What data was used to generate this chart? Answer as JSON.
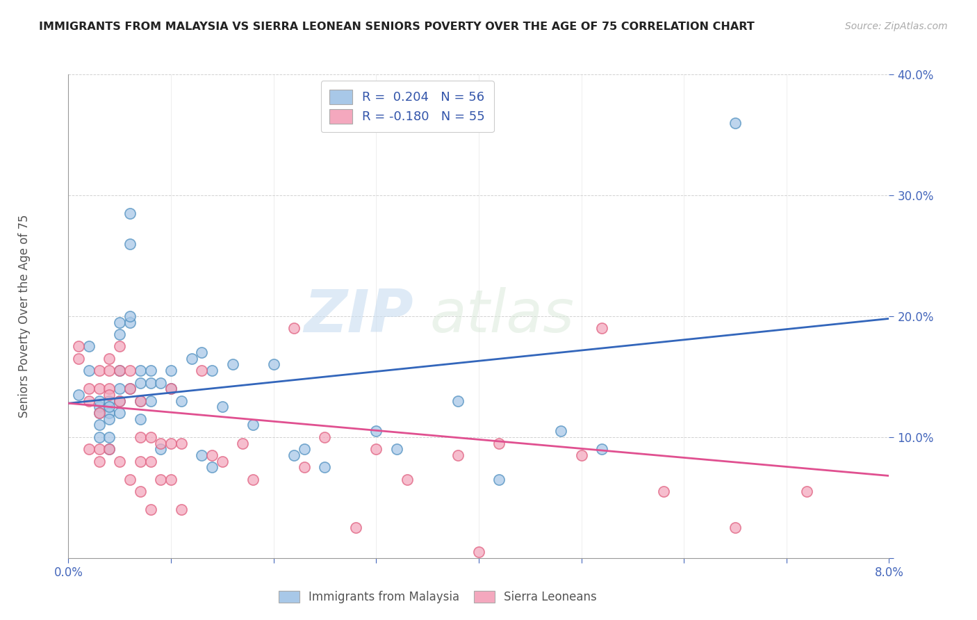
{
  "title": "IMMIGRANTS FROM MALAYSIA VS SIERRA LEONEAN SENIORS POVERTY OVER THE AGE OF 75 CORRELATION CHART",
  "source": "Source: ZipAtlas.com",
  "ylabel": "Seniors Poverty Over the Age of 75",
  "xlim": [
    0.0,
    0.08
  ],
  "ylim": [
    0.0,
    0.4
  ],
  "xticks": [
    0.0,
    0.01,
    0.02,
    0.03,
    0.04,
    0.05,
    0.06,
    0.07,
    0.08
  ],
  "yticks": [
    0.0,
    0.1,
    0.2,
    0.3,
    0.4
  ],
  "legend1_label": "R =  0.204   N = 56",
  "legend2_label": "R = -0.180   N = 55",
  "bottom_legend1": "Immigrants from Malaysia",
  "bottom_legend2": "Sierra Leoneans",
  "blue_color": "#a8c8e8",
  "pink_color": "#f4a8be",
  "blue_edge_color": "#5090c0",
  "pink_edge_color": "#e06080",
  "blue_line_color": "#3366bb",
  "pink_line_color": "#e05090",
  "watermark_zip": "ZIP",
  "watermark_atlas": "atlas",
  "blue_x": [
    0.001,
    0.002,
    0.002,
    0.003,
    0.003,
    0.003,
    0.003,
    0.003,
    0.004,
    0.004,
    0.004,
    0.004,
    0.004,
    0.004,
    0.005,
    0.005,
    0.005,
    0.005,
    0.005,
    0.005,
    0.006,
    0.006,
    0.006,
    0.006,
    0.006,
    0.007,
    0.007,
    0.007,
    0.007,
    0.008,
    0.008,
    0.008,
    0.009,
    0.009,
    0.01,
    0.01,
    0.011,
    0.012,
    0.013,
    0.013,
    0.014,
    0.014,
    0.015,
    0.016,
    0.018,
    0.02,
    0.022,
    0.023,
    0.025,
    0.03,
    0.032,
    0.038,
    0.042,
    0.048,
    0.052,
    0.065
  ],
  "blue_y": [
    0.135,
    0.155,
    0.175,
    0.125,
    0.13,
    0.12,
    0.11,
    0.1,
    0.13,
    0.12,
    0.125,
    0.115,
    0.1,
    0.09,
    0.195,
    0.185,
    0.155,
    0.14,
    0.13,
    0.12,
    0.195,
    0.285,
    0.26,
    0.2,
    0.14,
    0.155,
    0.145,
    0.13,
    0.115,
    0.155,
    0.145,
    0.13,
    0.145,
    0.09,
    0.155,
    0.14,
    0.13,
    0.165,
    0.17,
    0.085,
    0.155,
    0.075,
    0.125,
    0.16,
    0.11,
    0.16,
    0.085,
    0.09,
    0.075,
    0.105,
    0.09,
    0.13,
    0.065,
    0.105,
    0.09,
    0.36
  ],
  "pink_x": [
    0.001,
    0.001,
    0.002,
    0.002,
    0.002,
    0.003,
    0.003,
    0.003,
    0.003,
    0.003,
    0.004,
    0.004,
    0.004,
    0.004,
    0.004,
    0.005,
    0.005,
    0.005,
    0.005,
    0.006,
    0.006,
    0.006,
    0.007,
    0.007,
    0.007,
    0.007,
    0.008,
    0.008,
    0.008,
    0.009,
    0.009,
    0.01,
    0.01,
    0.01,
    0.011,
    0.011,
    0.013,
    0.014,
    0.015,
    0.017,
    0.018,
    0.022,
    0.023,
    0.025,
    0.028,
    0.03,
    0.033,
    0.038,
    0.04,
    0.042,
    0.05,
    0.052,
    0.058,
    0.065,
    0.072
  ],
  "pink_y": [
    0.175,
    0.165,
    0.14,
    0.13,
    0.09,
    0.155,
    0.14,
    0.12,
    0.09,
    0.08,
    0.165,
    0.155,
    0.14,
    0.135,
    0.09,
    0.175,
    0.155,
    0.13,
    0.08,
    0.155,
    0.14,
    0.065,
    0.13,
    0.1,
    0.08,
    0.055,
    0.1,
    0.08,
    0.04,
    0.095,
    0.065,
    0.14,
    0.095,
    0.065,
    0.095,
    0.04,
    0.155,
    0.085,
    0.08,
    0.095,
    0.065,
    0.19,
    0.075,
    0.1,
    0.025,
    0.09,
    0.065,
    0.085,
    0.005,
    0.095,
    0.085,
    0.19,
    0.055,
    0.025,
    0.055
  ],
  "blue_trend_x": [
    0.0,
    0.08
  ],
  "blue_trend_y": [
    0.128,
    0.198
  ],
  "pink_trend_x": [
    0.0,
    0.08
  ],
  "pink_trend_y": [
    0.128,
    0.068
  ]
}
